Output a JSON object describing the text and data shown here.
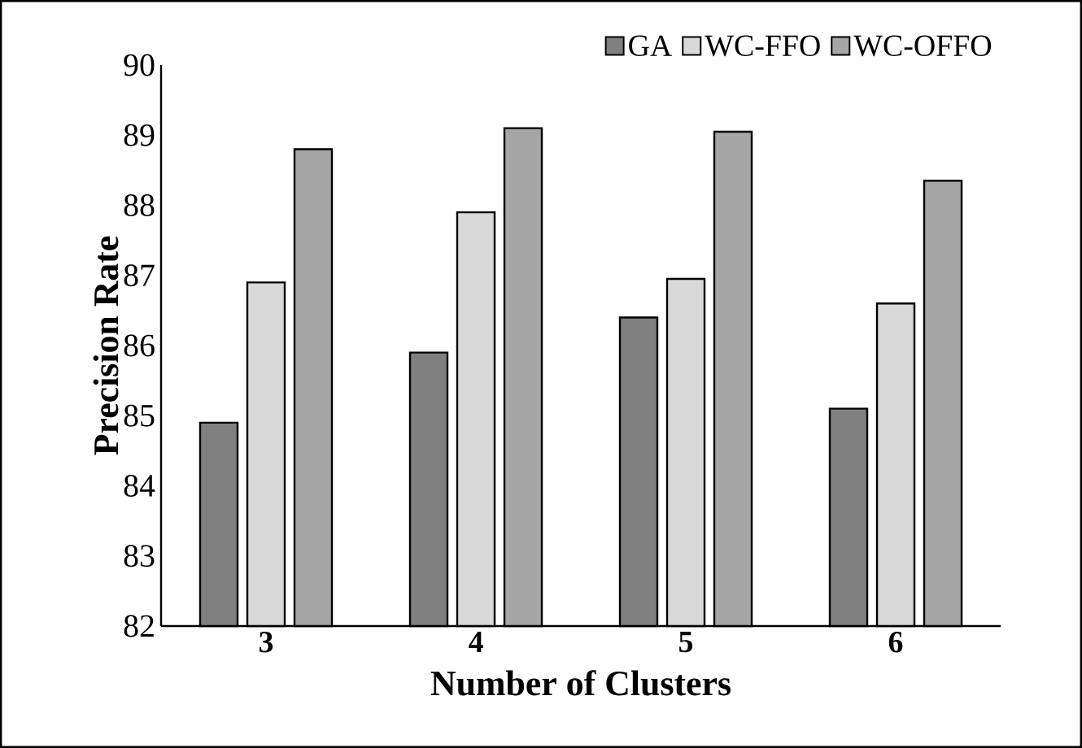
{
  "chart_data": {
    "type": "bar",
    "xlabel": "Number of Clusters",
    "ylabel": "Precision Rate",
    "categories": [
      "3",
      "4",
      "5",
      "6"
    ],
    "series": [
      {
        "name": "GA",
        "color": "#808080",
        "values": [
          84.9,
          85.9,
          86.4,
          85.1
        ]
      },
      {
        "name": "WC-FFO",
        "color": "#d9d9d9",
        "values": [
          86.9,
          87.9,
          86.95,
          86.6
        ]
      },
      {
        "name": "WC-OFFO",
        "color": "#a6a6a6",
        "values": [
          88.8,
          89.1,
          89.05,
          88.35
        ]
      }
    ],
    "ylim": [
      82,
      90
    ],
    "yticks": [
      82,
      83,
      84,
      85,
      86,
      87,
      88,
      89,
      90
    ],
    "legend": "top right"
  }
}
